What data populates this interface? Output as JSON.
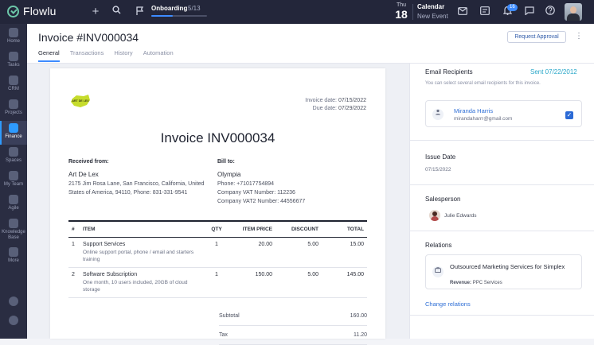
{
  "app": {
    "name": "Flowlu"
  },
  "topbar": {
    "onboarding_label": "Onboarding",
    "onboarding_count": "5/13",
    "onboarding_progress": 0.385,
    "calendar_dow": "Thu",
    "calendar_day": "18",
    "calendar_title": "Calendar",
    "calendar_sub": "New Event",
    "notif_count": "16",
    "icons": [
      "plus-icon",
      "search-icon",
      "onboarding-icon",
      "mail-icon",
      "tasks-icon",
      "bell-icon",
      "chat-icon",
      "help-icon"
    ]
  },
  "sidebar": {
    "items": [
      {
        "label": "Home"
      },
      {
        "label": "Tasks"
      },
      {
        "label": "CRM"
      },
      {
        "label": "Projects"
      },
      {
        "label": "Finance"
      },
      {
        "label": "Spaces"
      },
      {
        "label": "My Team"
      },
      {
        "label": "Agile"
      },
      {
        "label": "Knowledge Base"
      },
      {
        "label": "More"
      }
    ]
  },
  "header": {
    "title": "Invoice #INV000034",
    "tabs": [
      {
        "label": "General"
      },
      {
        "label": "Transactions"
      },
      {
        "label": "History"
      },
      {
        "label": "Automation"
      }
    ],
    "request_approval": "Request Approval",
    "kebab": "⋮"
  },
  "invoice": {
    "logo_text": "ART DE LEX",
    "date_label": "Invoice date:",
    "date": "07/15/2022",
    "due_label": "Due date:",
    "due": "07/29/2022",
    "title": "Invoice INV000034",
    "received_label": "Received from:",
    "received_name": "Art De Lex",
    "received_address": "2175 Jim Rosa Lane, San Francisco, California, United States of America, 94110, Phone: 831-331-9541",
    "bill_label": "Bill to:",
    "bill_name": "Olympia",
    "bill_phone": "Phone: +71017754894",
    "bill_vat": "Company VAT Number: 112236",
    "bill_vat2": "Company VAT2 Number: 44556677",
    "columns": [
      "#",
      "ITEM",
      "QTY",
      "ITEM PRICE",
      "DISCOUNT",
      "TOTAL"
    ],
    "rows": [
      {
        "n": "1",
        "item": "Support Services",
        "desc": "Online support portal, phone / email and starters training",
        "qty": "1",
        "price": "20.00",
        "discount": "5.00",
        "total": "15.00"
      },
      {
        "n": "2",
        "item": "Software Subscription",
        "desc": "One month, 10 users included, 20GB of cloud storage",
        "qty": "1",
        "price": "150.00",
        "discount": "5.00",
        "total": "145.00"
      }
    ],
    "subtotal_label": "Subtotal",
    "subtotal": "160.00",
    "tax_label": "Tax",
    "tax": "11.20"
  },
  "panel": {
    "email_title": "Email Recipients",
    "sent": "Sent 07/22/2012",
    "hint": "You can select several email recipients for this invoice.",
    "recipient_name": "Miranda Harris",
    "recipient_email": "mirandaharrr@gmail.com",
    "issue_title": "Issue Date",
    "issue_date": "07/15/2022",
    "salesperson_title": "Salesperson",
    "salesperson": "Julie Edwards",
    "relations_title": "Relations",
    "relation_name": "Outsourced Marketing Services for Simplex",
    "relation_meta_key": "Revenue:",
    "relation_meta_val": "PPC Services",
    "change_relations": "Change relations"
  }
}
